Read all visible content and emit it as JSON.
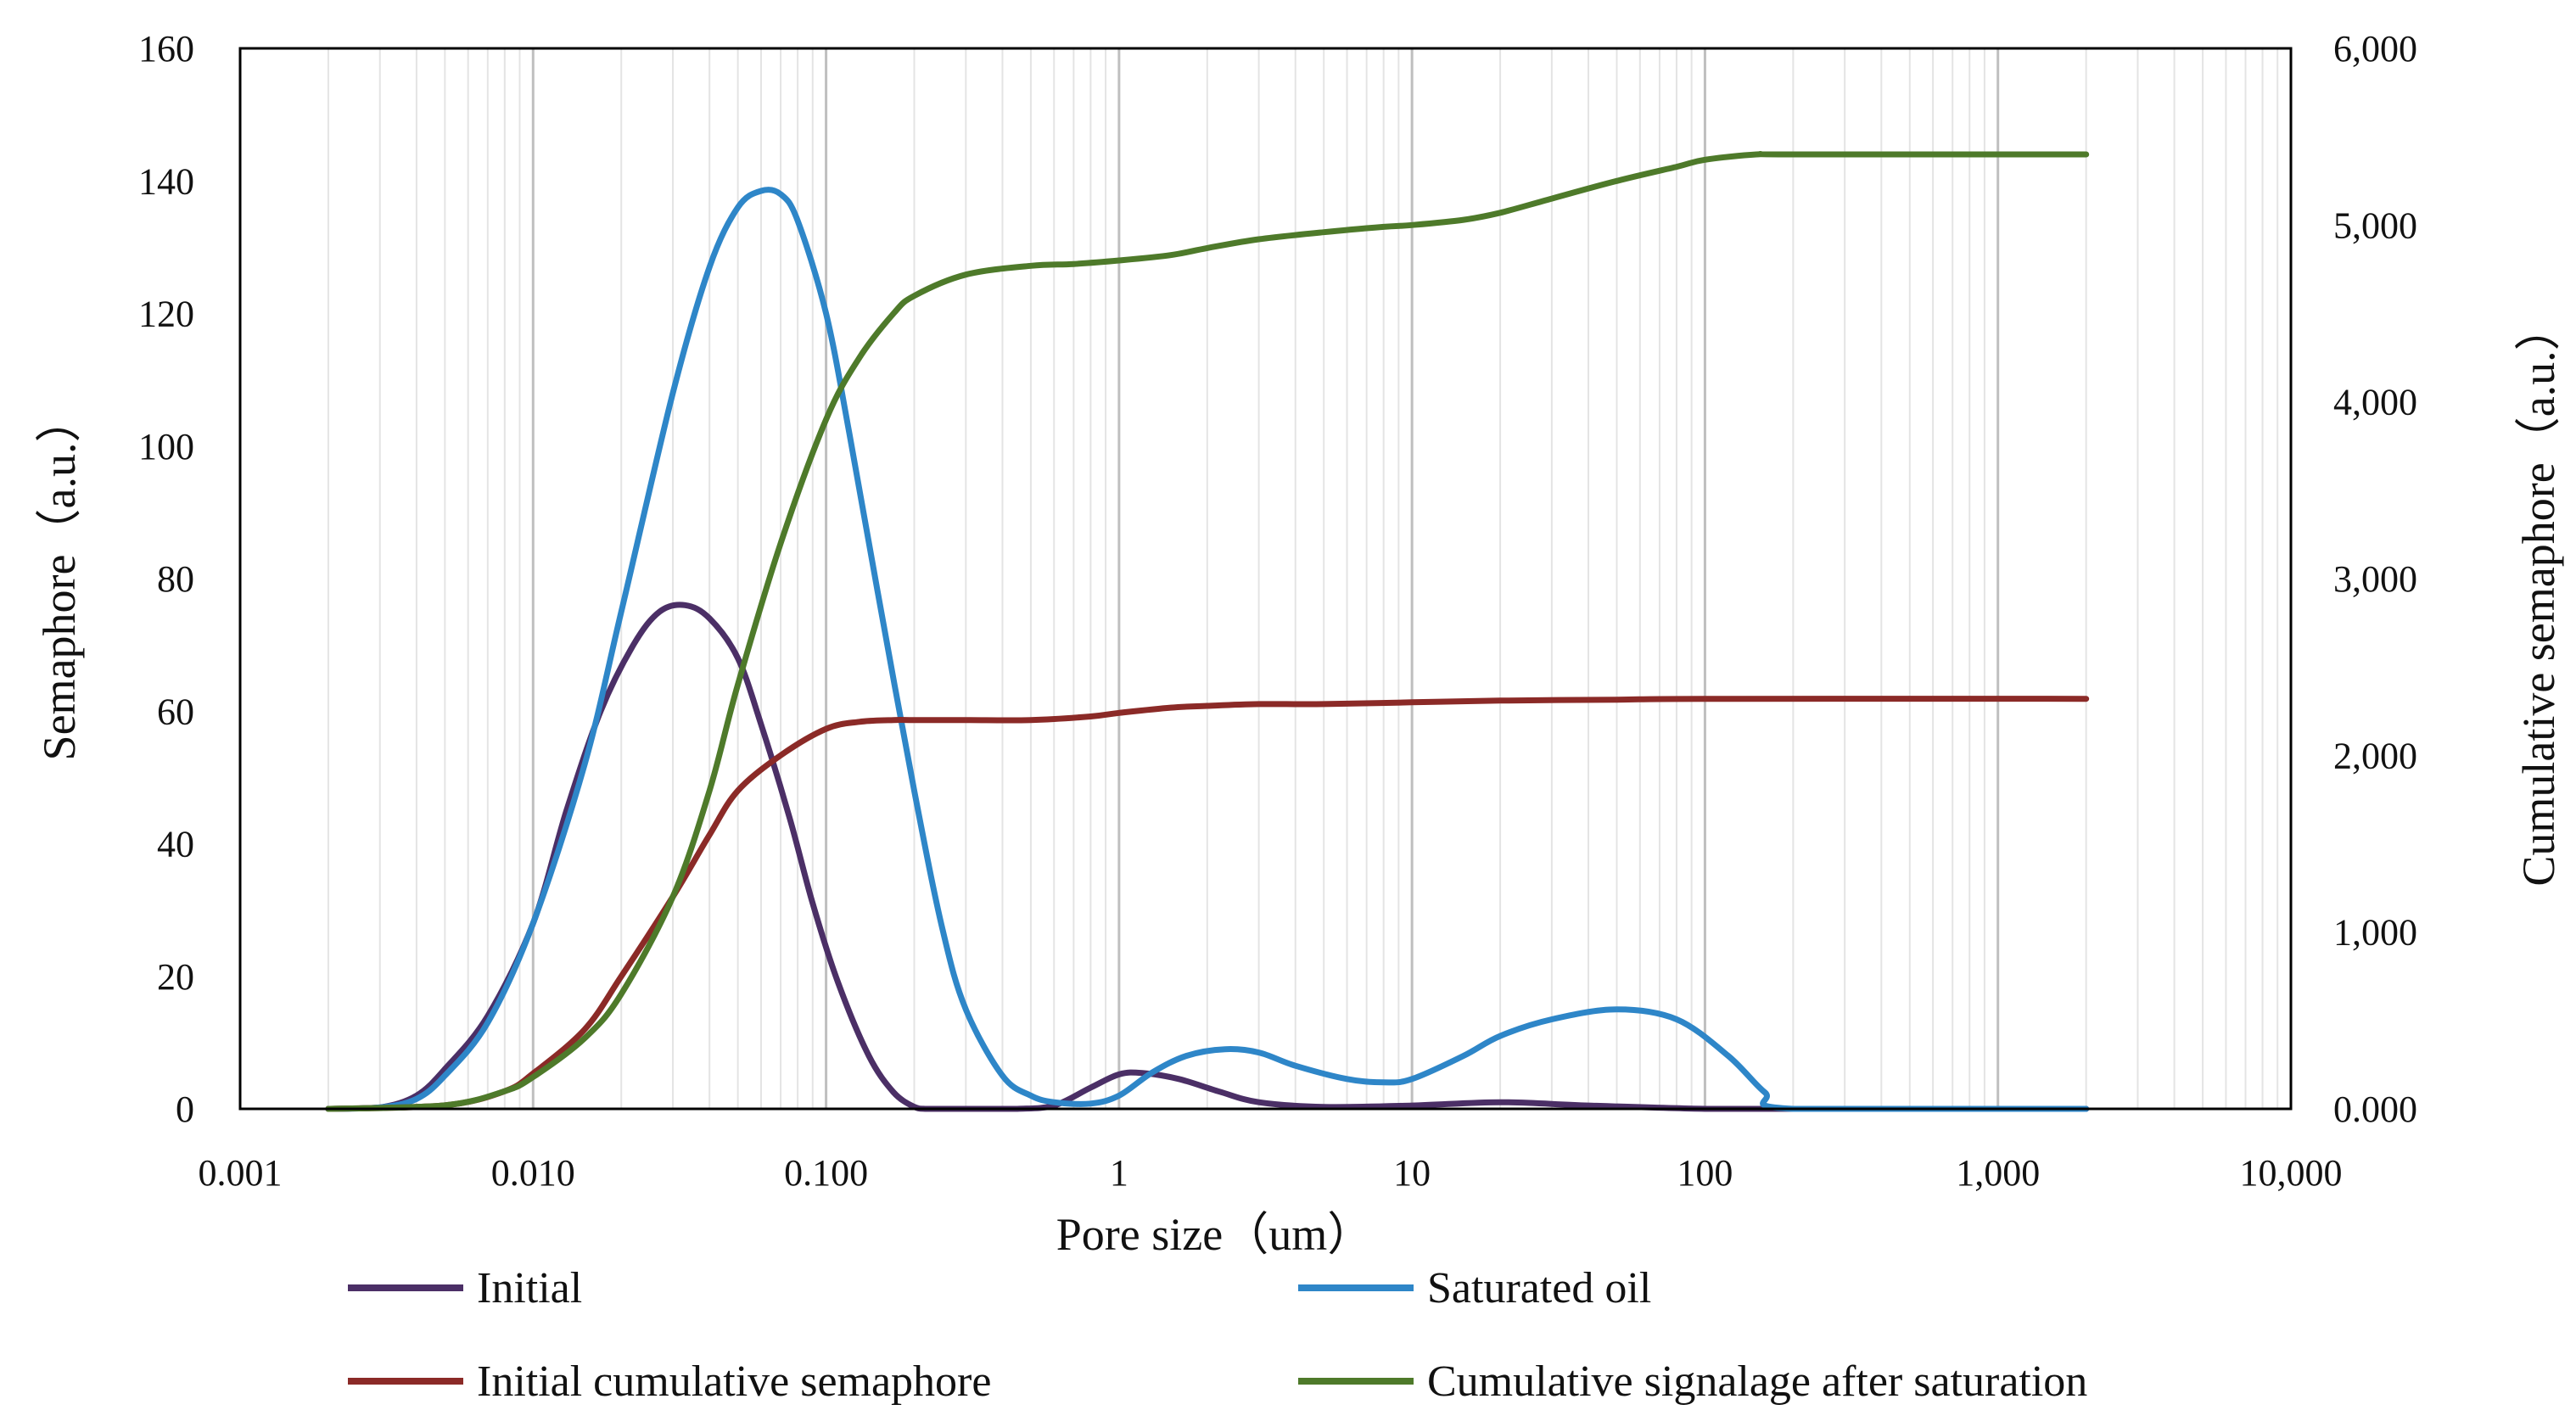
{
  "chart_data": {
    "type": "line",
    "title": "",
    "xlabel": "Pore size（um）",
    "ylabel": "Semaphore（a.u.）",
    "y2label": "Cumulative semaphore（a.u.）",
    "x_scale": "log",
    "xlim": [
      0.001,
      10000
    ],
    "ylim": [
      0,
      160
    ],
    "y2lim": [
      0,
      6000
    ],
    "x_ticks": [
      0.001,
      0.01,
      0.1,
      1,
      10,
      100,
      1000,
      10000
    ],
    "x_tick_labels": [
      "0.001",
      "0.010",
      "0.100",
      "1",
      "10",
      "100",
      "1,000",
      "10,000"
    ],
    "y_ticks": [
      0,
      20,
      40,
      60,
      80,
      100,
      120,
      140,
      160
    ],
    "y_tick_labels": [
      "0",
      "20",
      "40",
      "60",
      "80",
      "100",
      "120",
      "140",
      "160"
    ],
    "y2_ticks": [
      0,
      1000,
      2000,
      3000,
      4000,
      5000,
      6000
    ],
    "y2_tick_labels": [
      "0.000",
      "1,000",
      "2,000",
      "3,000",
      "4,000",
      "5,000",
      "6,000"
    ],
    "grid": "vertical-log",
    "legend_position": "bottom",
    "series": [
      {
        "name": "Initial",
        "axis": "left",
        "color": "#4b2f66",
        "x": [
          0.002,
          0.003,
          0.004,
          0.005,
          0.007,
          0.01,
          0.013,
          0.017,
          0.022,
          0.027,
          0.033,
          0.04,
          0.05,
          0.06,
          0.075,
          0.09,
          0.11,
          0.14,
          0.17,
          0.2,
          0.22,
          0.3,
          0.45,
          0.6,
          0.8,
          1,
          1.2,
          1.6,
          2.2,
          3,
          5,
          10,
          20,
          40,
          100,
          200,
          2000
        ],
        "y": [
          0,
          0.2,
          2,
          6,
          14,
          28,
          45,
          60,
          70,
          75,
          76,
          74,
          68,
          58,
          44,
          31,
          19,
          8,
          2.5,
          0.3,
          0,
          0,
          0,
          0.5,
          3.2,
          5.2,
          5.4,
          4.5,
          2.6,
          1,
          0.3,
          0.5,
          1,
          0.5,
          0,
          0,
          0
        ]
      },
      {
        "name": "Saturated oil",
        "axis": "left",
        "color": "#2e86c8",
        "x": [
          0.002,
          0.003,
          0.004,
          0.005,
          0.007,
          0.01,
          0.015,
          0.02,
          0.03,
          0.04,
          0.05,
          0.06,
          0.07,
          0.08,
          0.1,
          0.12,
          0.15,
          0.2,
          0.25,
          0.3,
          0.4,
          0.5,
          0.6,
          0.8,
          1,
          1.3,
          1.7,
          2.3,
          3,
          4,
          6,
          8,
          10,
          15,
          20,
          30,
          50,
          80,
          120,
          160,
          200,
          2000
        ],
        "y": [
          0,
          0.2,
          1.5,
          5,
          13,
          28,
          52,
          75,
          108,
          127,
          136,
          138.5,
          138,
          134,
          120,
          102,
          78,
          48,
          27,
          15,
          5,
          2,
          1,
          0.8,
          2,
          5.5,
          8,
          9,
          8.5,
          6.5,
          4.5,
          4,
          4.5,
          8,
          11,
          13.5,
          15,
          13.5,
          8,
          2.5,
          0,
          0
        ]
      },
      {
        "name": "Initial cumulative semaphore",
        "axis": "right",
        "color": "#8b2a27",
        "x": [
          0.002,
          0.005,
          0.008,
          0.01,
          0.015,
          0.02,
          0.03,
          0.04,
          0.05,
          0.07,
          0.1,
          0.13,
          0.17,
          0.2,
          0.3,
          0.5,
          0.8,
          1,
          1.5,
          2,
          3,
          5,
          10,
          20,
          50,
          100,
          2000
        ],
        "y": [
          0,
          20,
          100,
          200,
          450,
          750,
          1200,
          1550,
          1800,
          2000,
          2150,
          2190,
          2200,
          2200,
          2200,
          2200,
          2220,
          2240,
          2270,
          2280,
          2290,
          2290,
          2300,
          2310,
          2315,
          2320,
          2320
        ]
      },
      {
        "name": "Cumulative signalage after saturation",
        "axis": "right",
        "color": "#4e7a2a",
        "x": [
          0.002,
          0.005,
          0.008,
          0.01,
          0.015,
          0.02,
          0.03,
          0.04,
          0.05,
          0.07,
          0.1,
          0.13,
          0.17,
          0.2,
          0.3,
          0.5,
          0.7,
          1,
          1.5,
          2,
          3,
          5,
          8,
          10,
          15,
          20,
          30,
          50,
          80,
          100,
          150,
          200,
          2000
        ],
        "y": [
          0,
          20,
          100,
          180,
          400,
          650,
          1200,
          1800,
          2400,
          3200,
          3900,
          4250,
          4500,
          4600,
          4720,
          4770,
          4780,
          4800,
          4830,
          4870,
          4920,
          4960,
          4990,
          5000,
          5030,
          5070,
          5150,
          5250,
          5330,
          5370,
          5400,
          5400,
          5400
        ]
      }
    ]
  }
}
